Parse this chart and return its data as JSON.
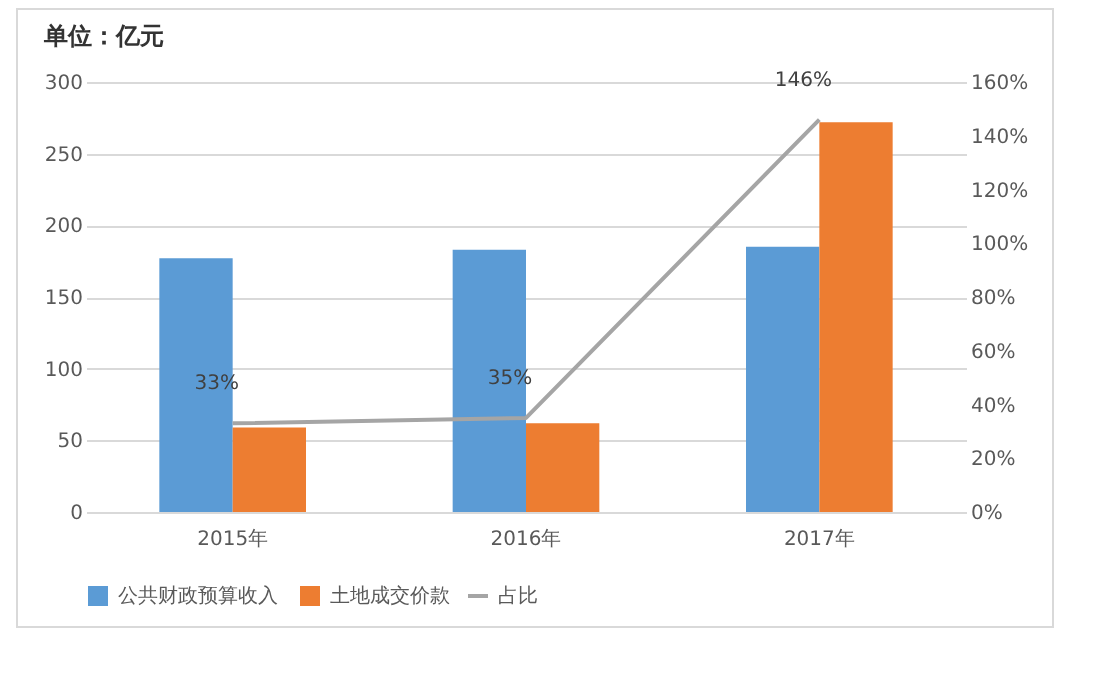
{
  "chart_data": {
    "type": "bar",
    "title": "单位：亿元",
    "categories": [
      "2015年",
      "2016年",
      "2017年"
    ],
    "series": [
      {
        "name": "公共财政预算收入",
        "color": "#5b9bd5",
        "values": [
          177,
          183,
          185
        ]
      },
      {
        "name": "土地成交价款",
        "color": "#ed7d31",
        "values": [
          59,
          62,
          272
        ]
      },
      {
        "name": "占比",
        "type": "line",
        "axis": "y2",
        "color": "#a5a5a5",
        "values": [
          33,
          35,
          146
        ],
        "value_labels": [
          "33%",
          "35%",
          "146%"
        ]
      }
    ],
    "ylim": [
      0,
      300
    ],
    "yticks": [
      0,
      50,
      100,
      150,
      200,
      250,
      300
    ],
    "y2lim": [
      0,
      160
    ],
    "y2ticks": [
      {
        "value": 0,
        "label": "0%"
      },
      {
        "value": 20,
        "label": "20%"
      },
      {
        "value": 40,
        "label": "40%"
      },
      {
        "value": 60,
        "label": "60%"
      },
      {
        "value": 80,
        "label": "80%"
      },
      {
        "value": 100,
        "label": "100%"
      },
      {
        "value": 120,
        "label": "120%"
      },
      {
        "value": 140,
        "label": "140%"
      },
      {
        "value": 160,
        "label": "160%"
      }
    ],
    "grid": "y",
    "legend": "bottom"
  }
}
